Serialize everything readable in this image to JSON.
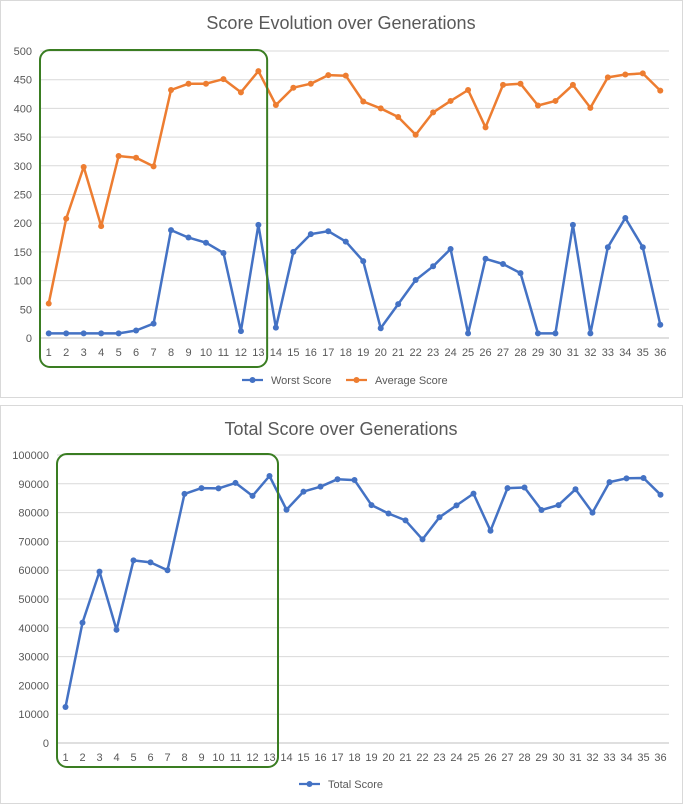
{
  "chart_data": [
    {
      "type": "line",
      "title": "Score Evolution over Generations",
      "xlabel": "",
      "ylabel": "",
      "categories": [
        "1",
        "2",
        "3",
        "4",
        "5",
        "6",
        "7",
        "8",
        "9",
        "10",
        "11",
        "12",
        "13",
        "14",
        "15",
        "16",
        "17",
        "18",
        "19",
        "20",
        "21",
        "22",
        "23",
        "24",
        "25",
        "26",
        "27",
        "28",
        "29",
        "30",
        "31",
        "32",
        "33",
        "34",
        "35",
        "36"
      ],
      "ylim": [
        0,
        500
      ],
      "yticks": [
        "0",
        "50",
        "100",
        "150",
        "200",
        "250",
        "300",
        "350",
        "400",
        "450",
        "500"
      ],
      "grid": true,
      "legend": "bottom",
      "series": [
        {
          "name": "Worst Score",
          "color": "#4472c4",
          "values": [
            8,
            8,
            8,
            8,
            8,
            13,
            25,
            188,
            175,
            166,
            148,
            12,
            197,
            18,
            150,
            181,
            186,
            168,
            134,
            17,
            59,
            101,
            125,
            155,
            8,
            138,
            129,
            113,
            8,
            8,
            197,
            8,
            158,
            209,
            158,
            23
          ]
        },
        {
          "name": "Average Score",
          "color": "#ed7d31",
          "values": [
            60,
            208,
            298,
            195,
            317,
            314,
            299,
            432,
            443,
            443,
            451,
            428,
            465,
            406,
            436,
            443,
            458,
            457,
            412,
            400,
            385,
            354,
            393,
            413,
            432,
            367,
            441,
            443,
            405,
            413,
            441,
            401,
            454,
            459,
            461,
            431
          ]
        }
      ],
      "highlight": {
        "from_category": "1",
        "to_category": "13",
        "color": "#3a7d22"
      }
    },
    {
      "type": "line",
      "title": "Total Score over Generations",
      "xlabel": "",
      "ylabel": "",
      "categories": [
        "1",
        "2",
        "3",
        "4",
        "5",
        "6",
        "7",
        "8",
        "9",
        "10",
        "11",
        "12",
        "13",
        "14",
        "15",
        "16",
        "17",
        "18",
        "19",
        "20",
        "21",
        "22",
        "23",
        "24",
        "25",
        "26",
        "27",
        "28",
        "29",
        "30",
        "31",
        "32",
        "33",
        "34",
        "35",
        "36"
      ],
      "ylim": [
        0,
        100000
      ],
      "yticks": [
        "0",
        "10000",
        "20000",
        "30000",
        "40000",
        "50000",
        "60000",
        "70000",
        "80000",
        "90000",
        "100000"
      ],
      "grid": true,
      "legend": "bottom",
      "series": [
        {
          "name": "Total Score",
          "color": "#4472c4",
          "values": [
            12500,
            41800,
            59500,
            39300,
            63400,
            62700,
            60000,
            86500,
            88500,
            88400,
            90300,
            85800,
            92700,
            81000,
            87300,
            89000,
            91600,
            91300,
            82600,
            79700,
            77300,
            70700,
            78400,
            82500,
            86600,
            73700,
            88500,
            88700,
            80900,
            82600,
            88100,
            80000,
            90600,
            91900,
            92000,
            86200
          ]
        }
      ],
      "highlight": {
        "from_category": "1",
        "to_category": "13",
        "color": "#3a7d22"
      }
    }
  ]
}
